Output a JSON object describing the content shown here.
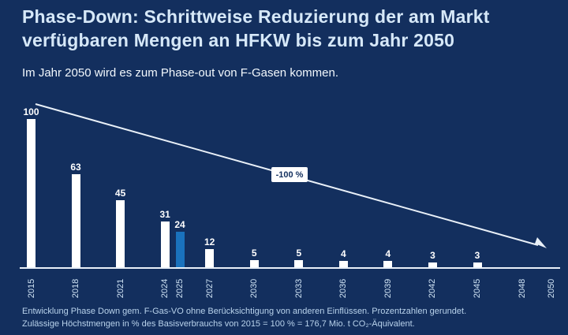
{
  "header": {
    "title": "Phase-Down: Schrittweise Reduzierung der am Markt\nverfügbaren Mengen an HFKW bis zum Jahr 2050",
    "subtitle": "Im Jahr 2050 wird es zum Phase-out von F-Gasen kommen."
  },
  "chart_data": {
    "type": "bar",
    "title": "Phase-Down: Schrittweise Reduzierung der am Markt verfügbaren Mengen an HFKW bis zum Jahr 2050",
    "categories": [
      "2015",
      "2018",
      "2021",
      "2024",
      "2025",
      "2027",
      "2030",
      "2033",
      "2036",
      "2039",
      "2042",
      "2045",
      "2048",
      "2050"
    ],
    "values": [
      100,
      63,
      45,
      31,
      24,
      12,
      5,
      5,
      4,
      4,
      3,
      3,
      0,
      0
    ],
    "value_unit": "%",
    "ylim": [
      0,
      100
    ],
    "grid": false,
    "legend": null,
    "xlabel": "",
    "ylabel": "",
    "highlight_category": "2025",
    "bar_color": "#ffffff",
    "highlight_color": "#1a72bd",
    "annotation": {
      "label": "-100 %"
    }
  },
  "footer": {
    "line1": "Entwicklung Phase Down gem. F-Gas-VO ohne Berücksichtigung von anderen Einflüssen. Prozentzahlen gerundet.",
    "line2": "Zulässige Höchstmengen in % des Basisverbrauchs von 2015 = 100 % = 176,7 Mio. t CO₂-Äquivalent."
  },
  "colors": {
    "background": "#132f5e",
    "title_text": "#d6e8f8",
    "bar": "#ffffff",
    "highlight_bar": "#1a72bd",
    "axis": "#e9f0f8",
    "footnote_text": "#b9d3ec"
  }
}
